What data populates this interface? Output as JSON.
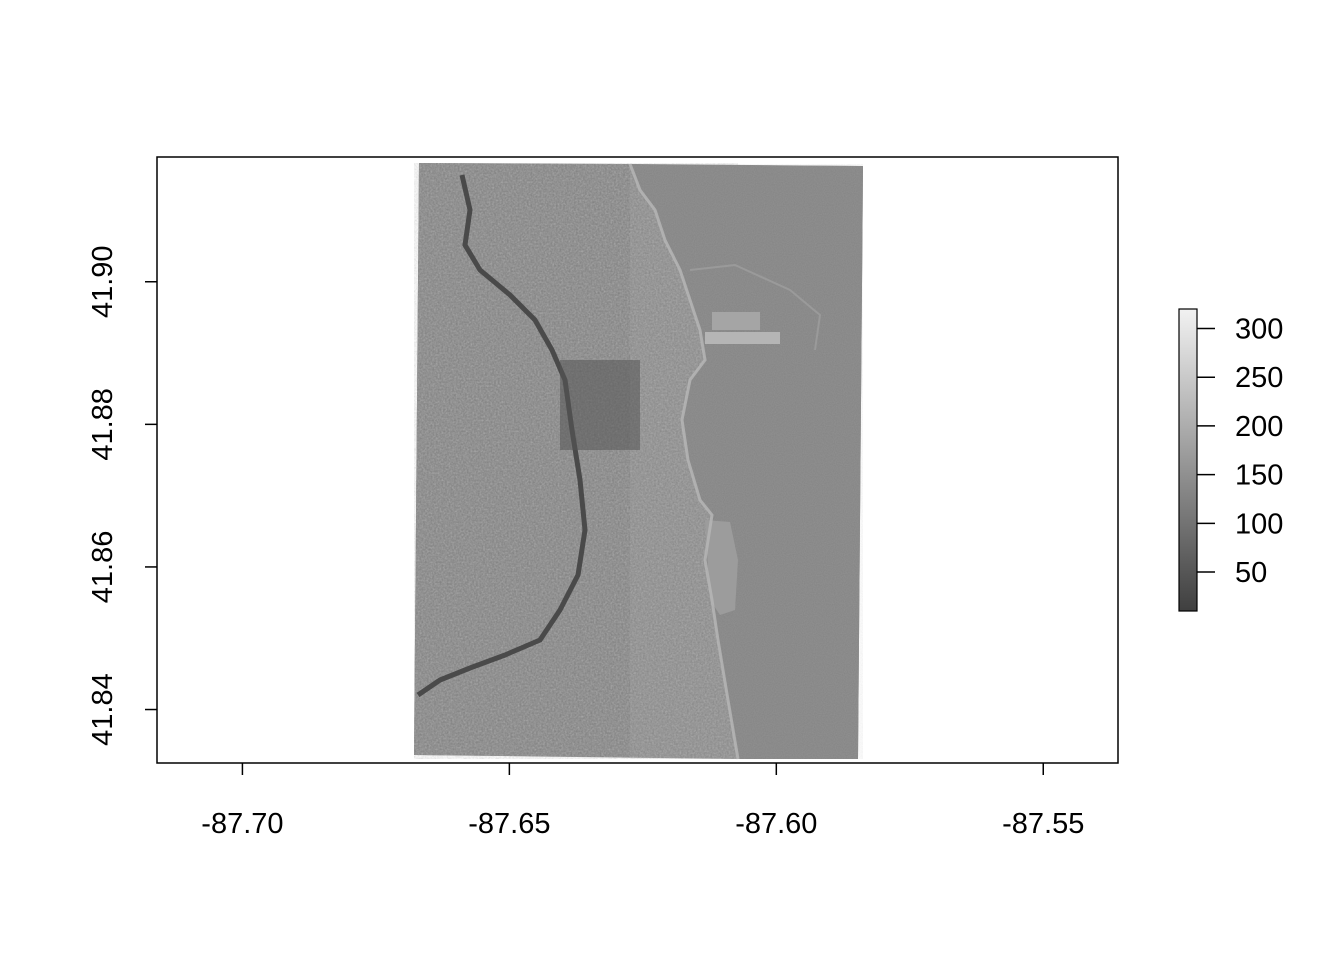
{
  "map": {
    "x_axis": {
      "range": [
        -87.716,
        -87.536
      ],
      "ticks": [
        -87.7,
        -87.65,
        -87.6,
        -87.55
      ],
      "tick_labels": [
        "-87.70",
        "-87.65",
        "-87.60",
        "-87.55"
      ]
    },
    "y_axis": {
      "range": [
        41.8325,
        41.9175
      ],
      "ticks": [
        41.84,
        41.86,
        41.88,
        41.9
      ],
      "tick_labels": [
        "41.84",
        "41.86",
        "41.88",
        "41.90"
      ]
    },
    "raster": {
      "extent_lon": [
        -87.667,
        -87.583
      ],
      "extent_lat": [
        41.8335,
        41.9165
      ],
      "colormap": "grayscale"
    },
    "legend": {
      "placement": "right",
      "range": [
        10,
        320
      ],
      "ticks": [
        50,
        100,
        150,
        200,
        250,
        300
      ],
      "tick_labels": [
        "50",
        "100",
        "150",
        "200",
        "250",
        "300"
      ],
      "color_low": "#3f3f3f",
      "color_high": "#f2f2f2"
    }
  }
}
